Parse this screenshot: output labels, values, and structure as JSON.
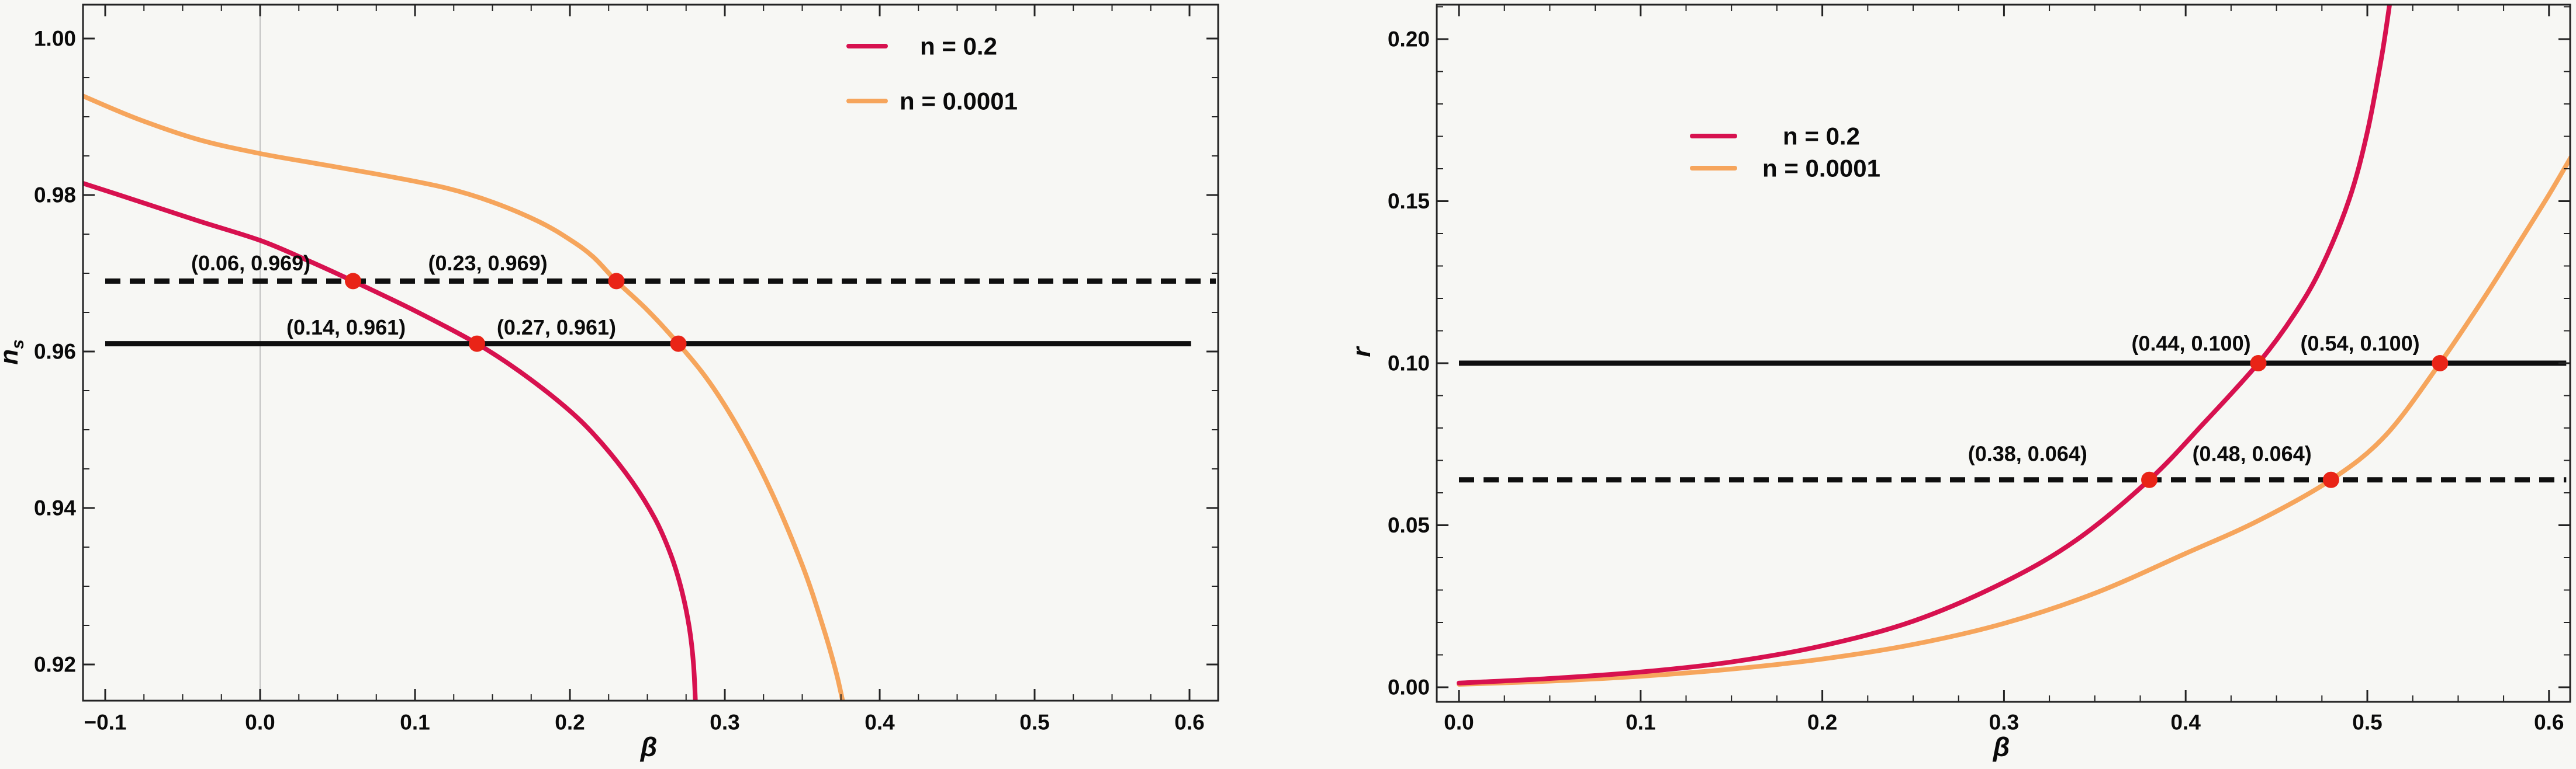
{
  "figure": {
    "background": "#f7f7f4",
    "frame_color": "#232323",
    "grid_color": "#c2c2c2",
    "text_color": "#0a0a0a",
    "accent_colors": {
      "crimson": "#d7114f",
      "orange": "#f6a55c",
      "dot_red": "#e92417",
      "ref_line_black": "#0f0f0f"
    }
  },
  "chart_data": [
    {
      "type": "line",
      "title": "",
      "xlabel": "β",
      "ylabel": "n_s",
      "ylabel_base": "n",
      "ylabel_sub": "s",
      "xlim": [
        -0.1143,
        0.6185
      ],
      "ylim": [
        0.9154,
        1.0043
      ],
      "grid": "x-zero-line-only",
      "x_gridlines": [
        0.0
      ],
      "xticks": {
        "major": [
          -0.1,
          0.0,
          0.1,
          0.2,
          0.3,
          0.4,
          0.5,
          0.6
        ],
        "labels": [
          "−0.1",
          "0.0",
          "0.1",
          "0.2",
          "0.3",
          "0.4",
          "0.5",
          "0.6"
        ],
        "minor_step": 0.025
      },
      "yticks": {
        "major": [
          0.92,
          0.94,
          0.96,
          0.98,
          1.0
        ],
        "labels": [
          "0.92",
          "0.94",
          "0.96",
          "0.98",
          "1.00"
        ],
        "minor_step": 0.005
      },
      "legend": {
        "position": "top-inside",
        "entries": [
          {
            "label": "n = 0.2",
            "color": "crimson"
          },
          {
            "label": "n = 0.0001",
            "color": "orange"
          }
        ]
      },
      "ref_lines": [
        {
          "value": 0.961,
          "style": "solid",
          "from": -0.1,
          "to": 0.601
        },
        {
          "value": 0.969,
          "style": "dashed",
          "from": -0.1,
          "to": 0.617
        }
      ],
      "series": [
        {
          "name": "n = 0.2",
          "color": "crimson",
          "points": [
            [
              -0.116,
              0.9816
            ],
            [
              -0.08,
              0.9793
            ],
            [
              -0.04,
              0.9767
            ],
            [
              0.0,
              0.9742
            ],
            [
              0.03,
              0.9717
            ],
            [
              0.06,
              0.969
            ],
            [
              0.1,
              0.9652
            ],
            [
              0.14,
              0.961
            ],
            [
              0.17,
              0.9571
            ],
            [
              0.2,
              0.9524
            ],
            [
              0.22,
              0.9484
            ],
            [
              0.24,
              0.9434
            ],
            [
              0.255,
              0.9386
            ],
            [
              0.265,
              0.9341
            ],
            [
              0.272,
              0.9296
            ],
            [
              0.277,
              0.9248
            ],
            [
              0.2798,
              0.92
            ],
            [
              0.2813,
              0.914
            ]
          ]
        },
        {
          "name": "n = 0.0001",
          "color": "orange",
          "points": [
            [
              -0.116,
              0.9928
            ],
            [
              -0.08,
              0.9898
            ],
            [
              -0.04,
              0.9871
            ],
            [
              0.0,
              0.9853
            ],
            [
              0.04,
              0.9839
            ],
            [
              0.08,
              0.9825
            ],
            [
              0.12,
              0.9809
            ],
            [
              0.15,
              0.9791
            ],
            [
              0.18,
              0.9766
            ],
            [
              0.2,
              0.9743
            ],
            [
              0.215,
              0.9721
            ],
            [
              0.23,
              0.969
            ],
            [
              0.25,
              0.9653
            ],
            [
              0.27,
              0.961
            ],
            [
              0.29,
              0.9561
            ],
            [
              0.31,
              0.9498
            ],
            [
              0.33,
              0.9421
            ],
            [
              0.35,
              0.9327
            ],
            [
              0.363,
              0.9251
            ],
            [
              0.372,
              0.9189
            ],
            [
              0.3775,
              0.914
            ]
          ]
        }
      ],
      "markers": [
        {
          "x": 0.06,
          "y": 0.969,
          "label": "(0.06, 0.969)",
          "label_x": -0.006,
          "label_y": 0.9713
        },
        {
          "x": 0.23,
          "y": 0.969,
          "label": "(0.23, 0.969)",
          "label_x": 0.147,
          "label_y": 0.9713
        },
        {
          "x": 0.14,
          "y": 0.961,
          "label": "(0.14, 0.961)",
          "label_x": 0.0555,
          "label_y": 0.9631
        },
        {
          "x": 0.27,
          "y": 0.961,
          "label": "(0.27, 0.961)",
          "label_x": 0.1913,
          "label_y": 0.9631
        }
      ]
    },
    {
      "type": "line",
      "title": "",
      "xlabel": "β",
      "ylabel": "r",
      "ylabel_base": "r",
      "ylabel_sub": "",
      "xlim": [
        -0.0122,
        0.6113
      ],
      "ylim": [
        -0.0045,
        0.2106
      ],
      "grid": "off",
      "x_gridlines": [],
      "xticks": {
        "major": [
          0.0,
          0.1,
          0.2,
          0.3,
          0.4,
          0.5,
          0.6
        ],
        "labels": [
          "0.0",
          "0.1",
          "0.2",
          "0.3",
          "0.4",
          "0.5",
          "0.6"
        ],
        "minor_step": 0.025
      },
      "yticks": {
        "major": [
          0.0,
          0.05,
          0.1,
          0.15,
          0.2
        ],
        "labels": [
          "0.00",
          "0.05",
          "0.10",
          "0.15",
          "0.20"
        ],
        "minor_step": 0.01
      },
      "legend": {
        "position": "upper-middle-inside",
        "entries": [
          {
            "label": "n = 0.2",
            "color": "crimson"
          },
          {
            "label": "n = 0.0001",
            "color": "orange"
          }
        ]
      },
      "ref_lines": [
        {
          "value": 0.1,
          "style": "solid",
          "from": 0.0,
          "to": 0.6095
        },
        {
          "value": 0.064,
          "style": "dashed",
          "from": 0.0,
          "to": 0.6095
        }
      ],
      "series": [
        {
          "name": "n = 0.2",
          "color": "crimson",
          "points": [
            [
              0.0,
              0.0013
            ],
            [
              0.05,
              0.0027
            ],
            [
              0.1,
              0.0047
            ],
            [
              0.15,
              0.0078
            ],
            [
              0.2,
              0.0128
            ],
            [
              0.25,
              0.0204
            ],
            [
              0.3,
              0.0324
            ],
            [
              0.34,
              0.0455
            ],
            [
              0.38,
              0.064
            ],
            [
              0.41,
              0.0815
            ],
            [
              0.44,
              0.1
            ],
            [
              0.46,
              0.1152
            ],
            [
              0.475,
              0.1299
            ],
            [
              0.49,
              0.1505
            ],
            [
              0.5,
              0.1713
            ],
            [
              0.508,
              0.195
            ],
            [
              0.513,
              0.2136
            ]
          ]
        },
        {
          "name": "n = 0.0001",
          "color": "orange",
          "points": [
            [
              0.0,
              0.0009
            ],
            [
              0.05,
              0.0019
            ],
            [
              0.1,
              0.0034
            ],
            [
              0.15,
              0.0056
            ],
            [
              0.2,
              0.0087
            ],
            [
              0.25,
              0.0132
            ],
            [
              0.3,
              0.0197
            ],
            [
              0.35,
              0.029
            ],
            [
              0.4,
              0.0413
            ],
            [
              0.44,
              0.0514
            ],
            [
              0.48,
              0.064
            ],
            [
              0.51,
              0.0777
            ],
            [
              0.54,
              0.1
            ],
            [
              0.565,
              0.1208
            ],
            [
              0.585,
              0.1385
            ],
            [
              0.6,
              0.152
            ],
            [
              0.612,
              0.1635
            ]
          ]
        }
      ],
      "markers": [
        {
          "x": 0.44,
          "y": 0.1,
          "label": "(0.44, 0.100)",
          "label_x": 0.403,
          "label_y": 0.1061
        },
        {
          "x": 0.54,
          "y": 0.1,
          "label": "(0.54, 0.100)",
          "label_x": 0.496,
          "label_y": 0.1061
        },
        {
          "x": 0.38,
          "y": 0.064,
          "label": "(0.38, 0.064)",
          "label_x": 0.313,
          "label_y": 0.0721
        },
        {
          "x": 0.48,
          "y": 0.064,
          "label": "(0.48, 0.064)",
          "label_x": 0.4365,
          "label_y": 0.0721
        }
      ]
    }
  ]
}
